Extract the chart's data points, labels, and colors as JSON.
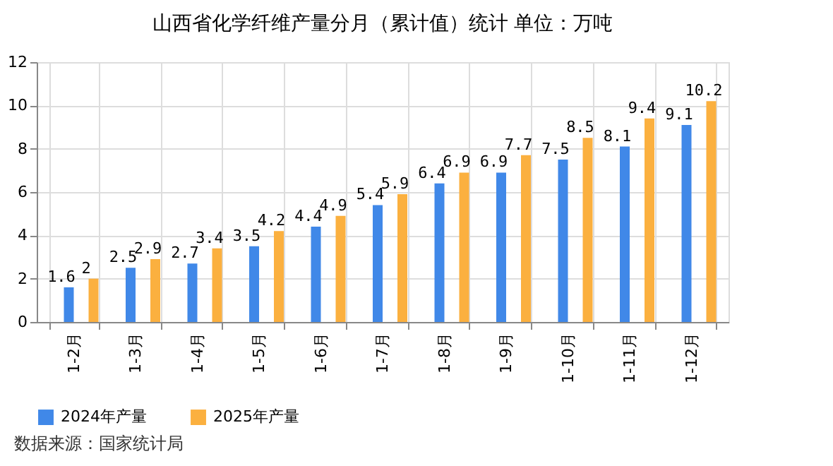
{
  "chart_data": {
    "type": "bar",
    "title": "山西省化学纤维产量分月（累计值）统计 单位：万吨",
    "categories": [
      "1-2月",
      "1-3月",
      "1-4月",
      "1-5月",
      "1-6月",
      "1-7月",
      "1-8月",
      "1-9月",
      "1-10月",
      "1-11月",
      "1-12月"
    ],
    "series": [
      {
        "name": "2024年产量",
        "color": "#4088e8",
        "values": [
          1.6,
          2.5,
          2.7,
          3.5,
          4.4,
          5.4,
          6.4,
          6.9,
          7.5,
          8.1,
          9.1
        ]
      },
      {
        "name": "2025年产量",
        "color": "#fbb03f",
        "values": [
          2,
          2.9,
          3.4,
          4.2,
          4.9,
          5.9,
          6.9,
          7.7,
          8.5,
          9.4,
          10.2
        ]
      }
    ],
    "ylim": [
      0,
      12
    ],
    "yticks": [
      0,
      2,
      4,
      6,
      8,
      10,
      12
    ],
    "grid": true,
    "legend": "bottom",
    "data_labels": true,
    "annotations": [
      "数据来源：国家统计局"
    ]
  }
}
